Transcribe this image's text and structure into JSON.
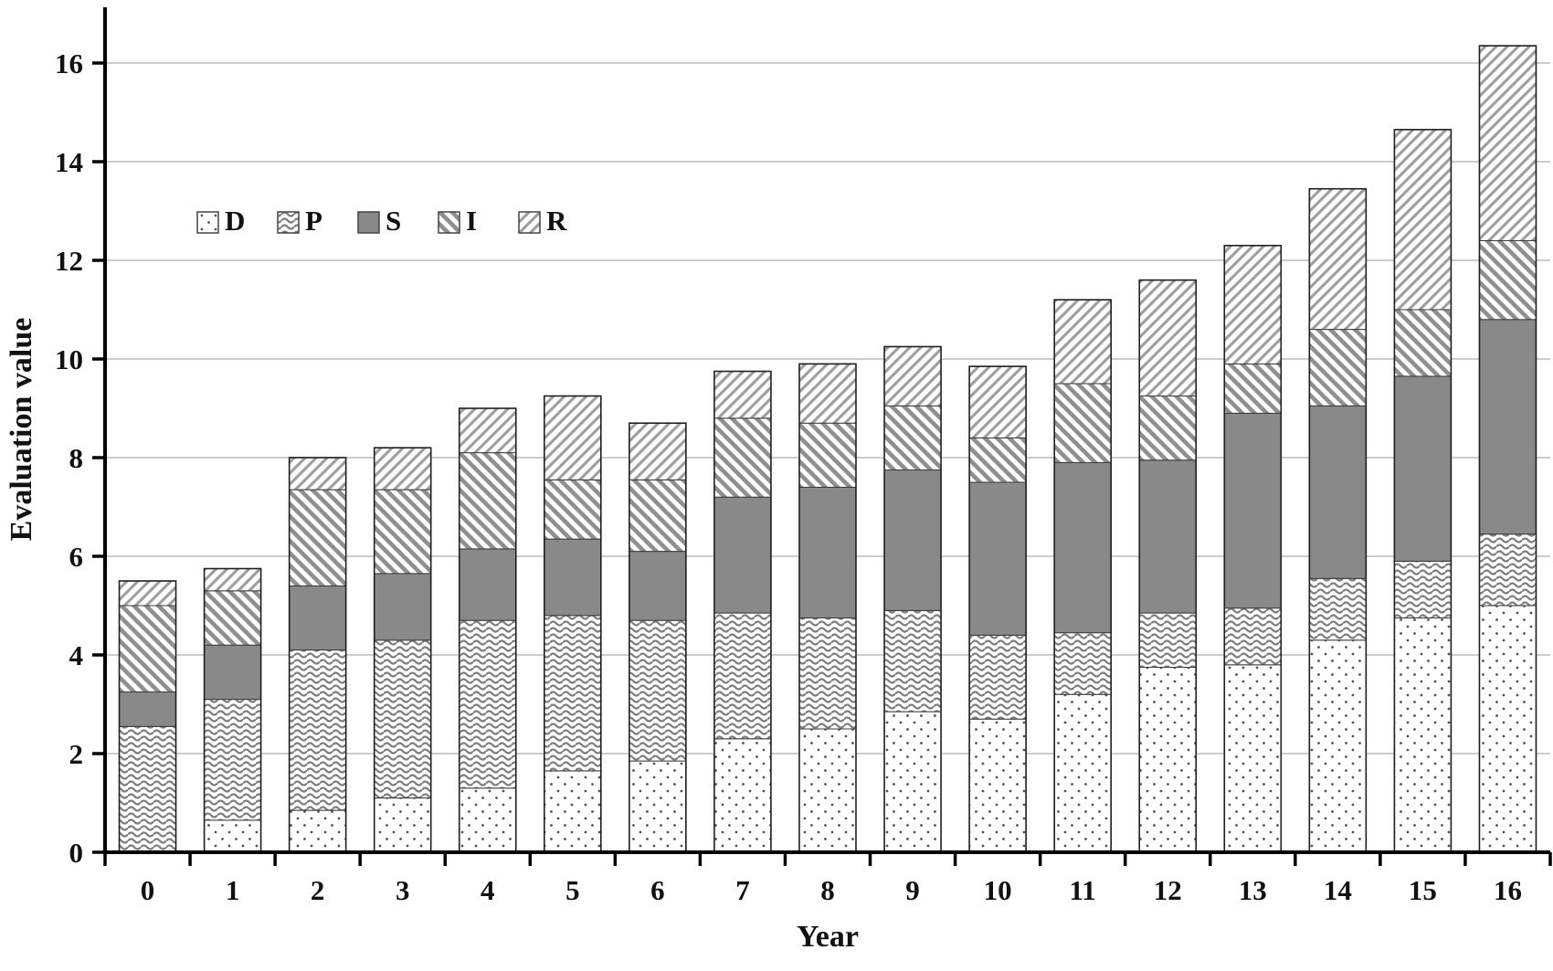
{
  "chart_data": {
    "type": "bar",
    "stacked": true,
    "title": "",
    "xlabel": "Year",
    "ylabel": "Evaluation value",
    "ylim": [
      0,
      16
    ],
    "ytick_step": 2,
    "grid": "horizontal",
    "legend_position": "top-left-inside",
    "legend_labels": [
      "D",
      "P",
      "S",
      "I",
      "R"
    ],
    "categories": [
      "0",
      "1",
      "2",
      "3",
      "4",
      "5",
      "6",
      "7",
      "8",
      "9",
      "10",
      "11",
      "12",
      "13",
      "14",
      "15",
      "16"
    ],
    "series": [
      {
        "name": "D",
        "pattern": "dots",
        "values": [
          0.0,
          0.65,
          0.85,
          1.1,
          1.3,
          1.65,
          1.85,
          2.3,
          2.5,
          2.85,
          2.7,
          3.2,
          3.75,
          3.8,
          4.3,
          4.75,
          5.0
        ]
      },
      {
        "name": "P",
        "pattern": "waves",
        "values": [
          2.55,
          2.45,
          3.25,
          3.2,
          3.4,
          3.15,
          2.85,
          2.55,
          2.25,
          2.05,
          1.7,
          1.25,
          1.1,
          1.15,
          1.25,
          1.15,
          1.45
        ]
      },
      {
        "name": "S",
        "pattern": "solid",
        "values": [
          0.7,
          1.1,
          1.3,
          1.35,
          1.45,
          1.55,
          1.4,
          2.35,
          2.65,
          2.85,
          3.1,
          3.45,
          3.1,
          3.95,
          3.5,
          3.75,
          4.35
        ]
      },
      {
        "name": "I",
        "pattern": "diag-back",
        "values": [
          1.75,
          1.1,
          1.95,
          1.7,
          1.95,
          1.2,
          1.45,
          1.6,
          1.3,
          1.3,
          0.9,
          1.6,
          1.3,
          1.0,
          1.55,
          1.35,
          1.6
        ]
      },
      {
        "name": "R",
        "pattern": "diag-fwd",
        "values": [
          0.5,
          0.45,
          0.65,
          0.85,
          0.9,
          1.7,
          1.15,
          0.95,
          1.2,
          1.2,
          1.45,
          1.7,
          2.35,
          2.4,
          2.85,
          3.65,
          3.95
        ]
      }
    ],
    "totals": [
      5.5,
      5.75,
      8.0,
      8.2,
      9.0,
      9.25,
      8.7,
      9.75,
      9.9,
      10.25,
      9.85,
      11.2,
      11.6,
      12.3,
      13.45,
      14.65,
      16.35
    ]
  },
  "colors": {
    "solid_gray": "#898989",
    "stripe_back_gray": "#8f8f8f",
    "stripe_fwd_gray": "#9e9e9e",
    "wave_gray": "#7f7f7f",
    "dot_gray": "#555555",
    "segment_border": "#3a3a3a",
    "bar_outline": "#1f1f1f",
    "grid": "#cccccc",
    "axis": "#000000",
    "background": "#ffffff"
  }
}
